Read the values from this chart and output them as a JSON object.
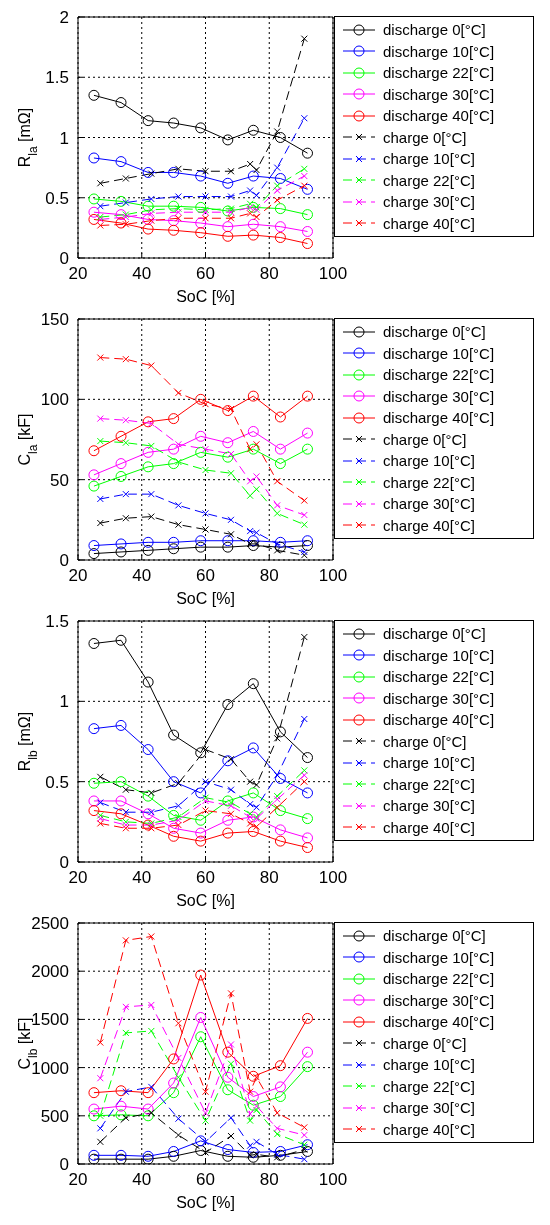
{
  "chart_data": [
    {
      "type": "line",
      "xlabel": "SoC [%]",
      "ylabel": "R$_{la}$ [mΩ]",
      "xlim": [
        20,
        100
      ],
      "xticks": [
        20,
        40,
        60,
        80,
        100
      ],
      "ylim": [
        0,
        2
      ],
      "yticks": [
        0,
        0.5,
        1,
        1.5,
        2
      ],
      "grid": true,
      "legend": "right",
      "series": [
        {
          "name": "discharge 0[°C]",
          "color": "#000000",
          "marker": "circle",
          "line_style": "solid",
          "x": [
            25,
            33.5,
            42,
            50,
            58.5,
            67,
            75,
            83.5,
            92
          ],
          "values": [
            1.35,
            1.29,
            1.14,
            1.12,
            1.08,
            0.98,
            1.06,
            1.0,
            0.87
          ]
        },
        {
          "name": "discharge 10[°C]",
          "color": "#0000ff",
          "marker": "circle",
          "line_style": "solid",
          "x": [
            25,
            33.5,
            42,
            50,
            58.5,
            67,
            75,
            83.5,
            92
          ],
          "values": [
            0.83,
            0.8,
            0.71,
            0.71,
            0.68,
            0.62,
            0.68,
            0.66,
            0.57
          ]
        },
        {
          "name": "discharge 22[°C]",
          "color": "#00ff00",
          "marker": "circle",
          "line_style": "solid",
          "x": [
            25,
            33.5,
            42,
            50,
            58.5,
            67,
            75,
            83.5,
            92
          ],
          "values": [
            0.49,
            0.47,
            0.43,
            0.43,
            0.42,
            0.39,
            0.42,
            0.41,
            0.36
          ]
        },
        {
          "name": "discharge 30[°C]",
          "color": "#ff00ff",
          "marker": "circle",
          "line_style": "solid",
          "x": [
            25,
            33.5,
            42,
            50,
            58.5,
            67,
            75,
            83.5,
            92
          ],
          "values": [
            0.38,
            0.36,
            0.32,
            0.31,
            0.29,
            0.26,
            0.28,
            0.26,
            0.22
          ]
        },
        {
          "name": "discharge 40[°C]",
          "color": "#ff0000",
          "marker": "circle",
          "line_style": "solid",
          "x": [
            25,
            33.5,
            42,
            50,
            58.5,
            67,
            75,
            83.5,
            92
          ],
          "values": [
            0.32,
            0.29,
            0.24,
            0.23,
            0.21,
            0.18,
            0.19,
            0.17,
            0.12
          ]
        },
        {
          "name": "charge 0[°C]",
          "color": "#000000",
          "marker": "cross",
          "line_style": "dashed",
          "x": [
            27,
            35,
            43,
            51.5,
            60,
            68,
            74,
            76,
            82.5,
            91
          ],
          "values": [
            0.62,
            0.66,
            0.7,
            0.74,
            0.72,
            0.72,
            0.78,
            0.73,
            1.05,
            1.82
          ]
        },
        {
          "name": "charge 10[°C]",
          "color": "#0000ff",
          "marker": "cross",
          "line_style": "dashed",
          "x": [
            27,
            35,
            43,
            51.5,
            60,
            68,
            74,
            76,
            82.5,
            91
          ],
          "values": [
            0.43,
            0.46,
            0.49,
            0.51,
            0.51,
            0.51,
            0.56,
            0.52,
            0.75,
            1.16
          ]
        },
        {
          "name": "charge 22[°C]",
          "color": "#00ff00",
          "marker": "cross",
          "line_style": "dashed",
          "x": [
            27,
            35,
            43,
            51.5,
            60,
            68,
            74,
            76,
            82.5,
            91
          ],
          "values": [
            0.34,
            0.36,
            0.4,
            0.41,
            0.4,
            0.41,
            0.45,
            0.42,
            0.6,
            0.74
          ]
        },
        {
          "name": "charge 30[°C]",
          "color": "#ff00ff",
          "marker": "cross",
          "line_style": "dashed",
          "x": [
            27,
            35,
            43,
            51.5,
            60,
            68,
            74,
            76,
            82.5,
            91
          ],
          "values": [
            0.32,
            0.34,
            0.37,
            0.38,
            0.38,
            0.38,
            0.42,
            0.4,
            0.56,
            0.68
          ]
        },
        {
          "name": "charge 40[°C]",
          "color": "#ff0000",
          "marker": "cross",
          "line_style": "dashed",
          "x": [
            27,
            35,
            43,
            51.5,
            60,
            68,
            74,
            76,
            82.5,
            91
          ],
          "values": [
            0.27,
            0.28,
            0.31,
            0.33,
            0.33,
            0.33,
            0.37,
            0.34,
            0.48,
            0.6
          ]
        }
      ]
    },
    {
      "type": "line",
      "xlabel": "SoC [%]",
      "ylabel": "C$_{la}$ [kF]",
      "xlim": [
        20,
        100
      ],
      "xticks": [
        20,
        40,
        60,
        80,
        100
      ],
      "ylim": [
        0,
        150
      ],
      "yticks": [
        0,
        50,
        100,
        150
      ],
      "grid": true,
      "legend": "right",
      "series": [
        {
          "name": "discharge 0[°C]",
          "color": "#000000",
          "marker": "circle",
          "line_style": "solid",
          "x": [
            25,
            33.5,
            42,
            50,
            58.5,
            67,
            75,
            83.5,
            92
          ],
          "values": [
            4,
            5,
            6,
            7,
            8,
            8,
            9,
            8,
            9
          ]
        },
        {
          "name": "discharge 10[°C]",
          "color": "#0000ff",
          "marker": "circle",
          "line_style": "solid",
          "x": [
            25,
            33.5,
            42,
            50,
            58.5,
            67,
            75,
            83.5,
            92
          ],
          "values": [
            9,
            10,
            11,
            11,
            12,
            12,
            12,
            11,
            12
          ]
        },
        {
          "name": "discharge 22[°C]",
          "color": "#00ff00",
          "marker": "circle",
          "line_style": "solid",
          "x": [
            25,
            33.5,
            42,
            50,
            58.5,
            67,
            75,
            83.5,
            92
          ],
          "values": [
            46,
            52,
            58,
            60,
            67,
            64,
            69,
            60,
            69
          ]
        },
        {
          "name": "discharge 30[°C]",
          "color": "#ff00ff",
          "marker": "circle",
          "line_style": "solid",
          "x": [
            25,
            33.5,
            42,
            50,
            58.5,
            67,
            75,
            83.5,
            92
          ],
          "values": [
            53,
            60,
            67,
            69,
            77,
            73,
            80,
            69,
            79
          ]
        },
        {
          "name": "discharge 40[°C]",
          "color": "#ff0000",
          "marker": "circle",
          "line_style": "solid",
          "x": [
            25,
            33.5,
            42,
            50,
            58.5,
            67,
            75,
            83.5,
            92
          ],
          "values": [
            68,
            77,
            86,
            88,
            100,
            93,
            102,
            89,
            102
          ]
        },
        {
          "name": "charge 0[°C]",
          "color": "#000000",
          "marker": "cross",
          "line_style": "dashed",
          "x": [
            27,
            35,
            43,
            51.5,
            60,
            68,
            74,
            76,
            82.5,
            91
          ],
          "values": [
            23,
            26,
            27,
            22,
            19,
            16,
            10,
            10,
            6,
            3
          ]
        },
        {
          "name": "charge 10[°C]",
          "color": "#0000ff",
          "marker": "cross",
          "line_style": "dashed",
          "x": [
            27,
            35,
            43,
            51.5,
            60,
            68,
            74,
            76,
            82.5,
            91
          ],
          "values": [
            38,
            41,
            41,
            34,
            29,
            25,
            18,
            17,
            10,
            5
          ]
        },
        {
          "name": "charge 22[°C]",
          "color": "#00ff00",
          "marker": "cross",
          "line_style": "dashed",
          "x": [
            27,
            35,
            43,
            51.5,
            60,
            68,
            74,
            76,
            82.5,
            91
          ],
          "values": [
            74,
            73,
            71,
            61,
            56,
            54,
            40,
            44,
            29,
            22
          ]
        },
        {
          "name": "charge 30[°C]",
          "color": "#ff00ff",
          "marker": "cross",
          "line_style": "dashed",
          "x": [
            27,
            35,
            43,
            51.5,
            60,
            68,
            74,
            76,
            82.5,
            91
          ],
          "values": [
            88,
            87,
            85,
            72,
            69,
            66,
            49,
            52,
            34,
            28
          ]
        },
        {
          "name": "charge 40[°C]",
          "color": "#ff0000",
          "marker": "cross",
          "line_style": "dashed",
          "x": [
            27,
            35,
            43,
            51.5,
            60,
            68,
            74,
            76,
            82.5,
            91
          ],
          "values": [
            126,
            125,
            121,
            104,
            97,
            94,
            69,
            72,
            49,
            37
          ]
        }
      ]
    },
    {
      "type": "line",
      "xlabel": "SoC [%]",
      "ylabel": "R$_{lb}$ [mΩ]",
      "xlim": [
        20,
        100
      ],
      "xticks": [
        20,
        40,
        60,
        80,
        100
      ],
      "ylim": [
        0,
        1.5
      ],
      "yticks": [
        0,
        0.5,
        1,
        1.5
      ],
      "grid": true,
      "legend": "right",
      "series": [
        {
          "name": "discharge 0[°C]",
          "color": "#000000",
          "marker": "circle",
          "line_style": "solid",
          "x": [
            25,
            33.5,
            42,
            50,
            58.5,
            67,
            75,
            83.5,
            92
          ],
          "values": [
            1.36,
            1.38,
            1.12,
            0.79,
            0.68,
            0.98,
            1.11,
            0.81,
            0.65
          ]
        },
        {
          "name": "discharge 10[°C]",
          "color": "#0000ff",
          "marker": "circle",
          "line_style": "solid",
          "x": [
            25,
            33.5,
            42,
            50,
            58.5,
            67,
            75,
            83.5,
            92
          ],
          "values": [
            0.83,
            0.85,
            0.7,
            0.5,
            0.43,
            0.63,
            0.71,
            0.52,
            0.43
          ]
        },
        {
          "name": "discharge 22[°C]",
          "color": "#00ff00",
          "marker": "circle",
          "line_style": "solid",
          "x": [
            25,
            33.5,
            42,
            50,
            58.5,
            67,
            75,
            83.5,
            92
          ],
          "values": [
            0.49,
            0.5,
            0.41,
            0.29,
            0.26,
            0.38,
            0.43,
            0.32,
            0.27
          ]
        },
        {
          "name": "discharge 30[°C]",
          "color": "#ff00ff",
          "marker": "circle",
          "line_style": "solid",
          "x": [
            25,
            33.5,
            42,
            50,
            58.5,
            67,
            75,
            83.5,
            92
          ],
          "values": [
            0.38,
            0.38,
            0.3,
            0.21,
            0.18,
            0.26,
            0.28,
            0.2,
            0.15
          ]
        },
        {
          "name": "discharge 40[°C]",
          "color": "#ff0000",
          "marker": "circle",
          "line_style": "solid",
          "x": [
            25,
            33.5,
            42,
            50,
            58.5,
            67,
            75,
            83.5,
            92
          ],
          "values": [
            0.32,
            0.3,
            0.23,
            0.16,
            0.13,
            0.18,
            0.19,
            0.13,
            0.09
          ]
        },
        {
          "name": "charge 0[°C]",
          "color": "#000000",
          "marker": "cross",
          "line_style": "dashed",
          "x": [
            27,
            35,
            43,
            51.5,
            60,
            68,
            74,
            76,
            82.5,
            91
          ],
          "values": [
            0.53,
            0.45,
            0.43,
            0.49,
            0.7,
            0.64,
            0.5,
            0.48,
            0.77,
            1.4
          ]
        },
        {
          "name": "charge 10[°C]",
          "color": "#0000ff",
          "marker": "cross",
          "line_style": "dashed",
          "x": [
            27,
            35,
            43,
            51.5,
            60,
            68,
            74,
            76,
            82.5,
            91
          ],
          "values": [
            0.37,
            0.31,
            0.31,
            0.35,
            0.5,
            0.45,
            0.36,
            0.34,
            0.54,
            0.89
          ]
        },
        {
          "name": "charge 22[°C]",
          "color": "#00ff00",
          "marker": "cross",
          "line_style": "dashed",
          "x": [
            27,
            35,
            43,
            51.5,
            60,
            68,
            74,
            76,
            82.5,
            91
          ],
          "values": [
            0.29,
            0.25,
            0.24,
            0.28,
            0.4,
            0.37,
            0.3,
            0.28,
            0.41,
            0.57
          ]
        },
        {
          "name": "charge 30[°C]",
          "color": "#ff00ff",
          "marker": "cross",
          "line_style": "dashed",
          "x": [
            27,
            35,
            43,
            51.5,
            60,
            68,
            74,
            76,
            82.5,
            91
          ],
          "values": [
            0.27,
            0.23,
            0.23,
            0.26,
            0.38,
            0.35,
            0.28,
            0.27,
            0.39,
            0.54
          ]
        },
        {
          "name": "charge 40[°C]",
          "color": "#ff0000",
          "marker": "cross",
          "line_style": "dashed",
          "x": [
            27,
            35,
            43,
            51.5,
            60,
            68,
            74,
            76,
            82.5,
            91
          ],
          "values": [
            0.24,
            0.21,
            0.21,
            0.23,
            0.32,
            0.3,
            0.24,
            0.22,
            0.34,
            0.5
          ]
        }
      ]
    },
    {
      "type": "line",
      "xlabel": "SoC [%]",
      "ylabel": "C$_{lb}$ [kF]",
      "xlim": [
        20,
        100
      ],
      "xticks": [
        20,
        40,
        60,
        80,
        100
      ],
      "ylim": [
        0,
        2500
      ],
      "yticks": [
        0,
        500,
        1000,
        1500,
        2000,
        2500
      ],
      "grid": true,
      "legend": "right",
      "series": [
        {
          "name": "discharge 0[°C]",
          "color": "#000000",
          "marker": "circle",
          "line_style": "solid",
          "x": [
            25,
            33.5,
            42,
            50,
            58.5,
            67,
            75,
            83.5,
            92
          ],
          "values": [
            50,
            50,
            50,
            80,
            140,
            80,
            70,
            90,
            130
          ]
        },
        {
          "name": "discharge 10[°C]",
          "color": "#0000ff",
          "marker": "circle",
          "line_style": "solid",
          "x": [
            25,
            33.5,
            42,
            50,
            58.5,
            67,
            75,
            83.5,
            92
          ],
          "values": [
            90,
            90,
            80,
            130,
            240,
            150,
            120,
            130,
            200
          ]
        },
        {
          "name": "discharge 22[°C]",
          "color": "#00ff00",
          "marker": "circle",
          "line_style": "solid",
          "x": [
            25,
            33.5,
            42,
            50,
            58.5,
            67,
            75,
            83.5,
            92
          ],
          "values": [
            500,
            510,
            500,
            740,
            1320,
            770,
            610,
            700,
            1010
          ]
        },
        {
          "name": "discharge 30[°C]",
          "color": "#ff00ff",
          "marker": "circle",
          "line_style": "solid",
          "x": [
            25,
            33.5,
            42,
            50,
            58.5,
            67,
            75,
            83.5,
            92
          ],
          "values": [
            570,
            600,
            570,
            840,
            1520,
            900,
            700,
            800,
            1160
          ]
        },
        {
          "name": "discharge 40[°C]",
          "color": "#ff0000",
          "marker": "circle",
          "line_style": "solid",
          "x": [
            25,
            33.5,
            42,
            50,
            58.5,
            67,
            75,
            83.5,
            92
          ],
          "values": [
            740,
            760,
            740,
            1090,
            1960,
            1160,
            910,
            1020,
            1510
          ]
        },
        {
          "name": "charge 0[°C]",
          "color": "#000000",
          "marker": "cross",
          "line_style": "dashed",
          "x": [
            27,
            35,
            43,
            51.5,
            60,
            68,
            74,
            76,
            82.5,
            91
          ],
          "values": [
            230,
            480,
            530,
            300,
            120,
            290,
            90,
            100,
            70,
            150
          ]
        },
        {
          "name": "charge 10[°C]",
          "color": "#0000ff",
          "marker": "cross",
          "line_style": "dashed",
          "x": [
            27,
            35,
            43,
            51.5,
            60,
            68,
            74,
            76,
            82.5,
            91
          ],
          "values": [
            370,
            750,
            800,
            470,
            230,
            480,
            190,
            230,
            100,
            50
          ]
        },
        {
          "name": "charge 22[°C]",
          "color": "#00ff00",
          "marker": "cross",
          "line_style": "dashed",
          "x": [
            27,
            35,
            43,
            51.5,
            60,
            68,
            74,
            76,
            82.5,
            91
          ],
          "values": [
            500,
            1360,
            1380,
            900,
            450,
            1040,
            450,
            560,
            310,
            200
          ]
        },
        {
          "name": "charge 30[°C]",
          "color": "#ff00ff",
          "marker": "cross",
          "line_style": "dashed",
          "x": [
            27,
            35,
            43,
            51.5,
            60,
            68,
            74,
            76,
            82.5,
            91
          ],
          "values": [
            890,
            1630,
            1650,
            1100,
            530,
            1240,
            520,
            600,
            370,
            300
          ]
        },
        {
          "name": "charge 40[°C]",
          "color": "#ff0000",
          "marker": "cross",
          "line_style": "dashed",
          "x": [
            27,
            35,
            43,
            51.5,
            60,
            68,
            74,
            76,
            82.5,
            91
          ],
          "values": [
            1260,
            2320,
            2360,
            1460,
            750,
            1770,
            750,
            900,
            530,
            380
          ]
        }
      ]
    }
  ]
}
